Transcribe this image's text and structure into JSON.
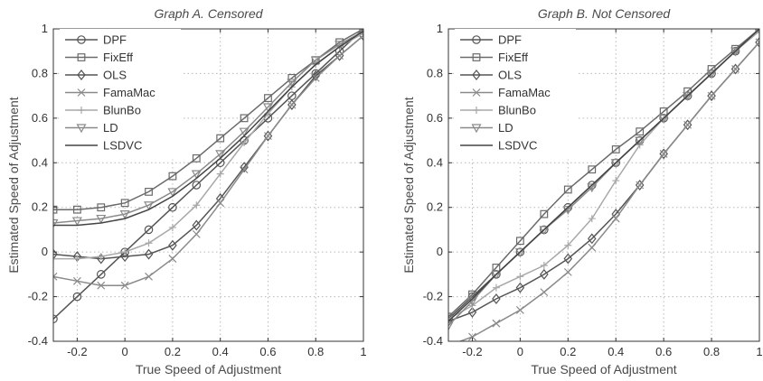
{
  "chart_data": [
    {
      "type": "line",
      "title": "Graph A. Censored",
      "xlabel": "True Speed of Adjustment",
      "ylabel": "Estimated Speed of Adjustment",
      "xlim": [
        -0.3,
        1
      ],
      "ylim": [
        -0.4,
        1
      ],
      "xticks": [
        -0.2,
        0,
        0.2,
        0.4,
        0.6,
        0.8,
        1
      ],
      "xtick_labels": [
        "-0.2",
        "0",
        "0.2",
        "0.4",
        "0.6",
        "0.8",
        "1"
      ],
      "yticks": [
        -0.4,
        -0.2,
        0,
        0.2,
        0.4,
        0.6,
        0.8,
        1
      ],
      "ytick_labels": [
        "-0.4",
        "-0.2",
        "0",
        "0.2",
        "0.4",
        "0.6",
        "0.8",
        "1"
      ],
      "grid": true,
      "legend_position": "top-left",
      "x": [
        -0.3,
        -0.2,
        -0.1,
        0,
        0.1,
        0.2,
        0.3,
        0.4,
        0.5,
        0.6,
        0.7,
        0.8,
        0.9,
        1
      ],
      "series": [
        {
          "name": "DPF",
          "marker": "circle",
          "color": "#555555",
          "values": [
            -0.3,
            -0.2,
            -0.1,
            0,
            0.1,
            0.2,
            0.3,
            0.4,
            0.5,
            0.6,
            0.7,
            0.8,
            0.9,
            1
          ]
        },
        {
          "name": "FixEff",
          "marker": "square",
          "color": "#6a6a6a",
          "values": [
            0.19,
            0.19,
            0.2,
            0.22,
            0.27,
            0.34,
            0.42,
            0.51,
            0.6,
            0.69,
            0.78,
            0.86,
            0.94,
            1
          ]
        },
        {
          "name": "OLS",
          "marker": "diamond",
          "color": "#555555",
          "values": [
            -0.01,
            -0.02,
            -0.03,
            -0.02,
            -0.01,
            0.03,
            0.12,
            0.24,
            0.38,
            0.52,
            0.66,
            0.79,
            0.88,
            0.97
          ]
        },
        {
          "name": "FamaMac",
          "marker": "x",
          "color": "#8a8a8a",
          "values": [
            -0.11,
            -0.13,
            -0.15,
            -0.15,
            -0.11,
            -0.03,
            0.08,
            0.22,
            0.37,
            0.52,
            0.66,
            0.78,
            0.88,
            0.97
          ]
        },
        {
          "name": "BlunBo",
          "marker": "plus",
          "color": "#a8a8a8",
          "values": [
            -0.03,
            -0.03,
            -0.02,
            0,
            0.04,
            0.11,
            0.21,
            0.35,
            0.49,
            0.62,
            0.74,
            0.84,
            0.92,
            0.98
          ]
        },
        {
          "name": "LD",
          "marker": "triangle-down",
          "color": "#8a8a8a",
          "values": [
            0.13,
            0.14,
            0.15,
            0.17,
            0.21,
            0.27,
            0.35,
            0.44,
            0.54,
            0.65,
            0.76,
            0.86,
            0.93,
            0.99
          ]
        },
        {
          "name": "LSDVC",
          "marker": "none",
          "color": "#444444",
          "values": [
            0.12,
            0.12,
            0.13,
            0.15,
            0.19,
            0.25,
            0.33,
            0.42,
            0.52,
            0.63,
            0.74,
            0.84,
            0.92,
            0.99
          ]
        }
      ]
    },
    {
      "type": "line",
      "title": "Graph B. Not Censored",
      "xlabel": "True Speed of Adjustment",
      "ylabel": "Estimated Speed of Adjustment",
      "xlim": [
        -0.3,
        1
      ],
      "ylim": [
        -0.4,
        1
      ],
      "xticks": [
        -0.2,
        0,
        0.2,
        0.4,
        0.6,
        0.8,
        1
      ],
      "xtick_labels": [
        "-0.2",
        "0",
        "0.2",
        "0.4",
        "0.6",
        "0.8",
        "1"
      ],
      "yticks": [
        -0.4,
        -0.2,
        0,
        0.2,
        0.4,
        0.6,
        0.8,
        1
      ],
      "ytick_labels": [
        "-0.4",
        "-0.2",
        "0",
        "0.2",
        "0.4",
        "0.6",
        "0.8",
        "1"
      ],
      "grid": true,
      "legend_position": "top-left",
      "x": [
        -0.3,
        -0.2,
        -0.1,
        0,
        0.1,
        0.2,
        0.3,
        0.4,
        0.5,
        0.6,
        0.7,
        0.8,
        0.9,
        1
      ],
      "series": [
        {
          "name": "DPF",
          "marker": "circle",
          "color": "#555555",
          "values": [
            -0.3,
            -0.2,
            -0.1,
            0,
            0.1,
            0.2,
            0.3,
            0.4,
            0.5,
            0.6,
            0.7,
            0.8,
            0.9,
            1
          ]
        },
        {
          "name": "FixEff",
          "marker": "square",
          "color": "#6a6a6a",
          "values": [
            -0.29,
            -0.19,
            -0.07,
            0.05,
            0.17,
            0.28,
            0.37,
            0.46,
            0.54,
            0.63,
            0.72,
            0.82,
            0.91,
            1
          ]
        },
        {
          "name": "OLS",
          "marker": "diamond",
          "color": "#555555",
          "values": [
            -0.31,
            -0.27,
            -0.21,
            -0.16,
            -0.1,
            -0.03,
            0.06,
            0.17,
            0.3,
            0.44,
            0.57,
            0.7,
            0.82,
            0.94
          ]
        },
        {
          "name": "FamaMac",
          "marker": "x",
          "color": "#8a8a8a",
          "values": [
            -0.42,
            -0.38,
            -0.32,
            -0.26,
            -0.18,
            -0.09,
            0.02,
            0.15,
            0.3,
            0.44,
            0.57,
            0.7,
            0.82,
            0.94
          ]
        },
        {
          "name": "BlunBo",
          "marker": "plus",
          "color": "#a8a8a8",
          "values": [
            -0.3,
            -0.24,
            -0.16,
            -0.11,
            -0.06,
            0.03,
            0.15,
            0.32,
            0.48,
            0.6,
            0.7,
            0.8,
            0.9,
            0.99
          ]
        },
        {
          "name": "LD",
          "marker": "triangle-down",
          "color": "#8a8a8a",
          "values": [
            -0.33,
            -0.22,
            -0.1,
            0,
            0.1,
            0.19,
            0.29,
            0.4,
            0.5,
            0.6,
            0.7,
            0.8,
            0.9,
            1
          ]
        },
        {
          "name": "LSDVC",
          "marker": "none",
          "color": "#444444",
          "values": [
            -0.31,
            -0.21,
            -0.1,
            0,
            0.1,
            0.2,
            0.3,
            0.4,
            0.5,
            0.6,
            0.7,
            0.8,
            0.9,
            1
          ]
        }
      ]
    }
  ]
}
